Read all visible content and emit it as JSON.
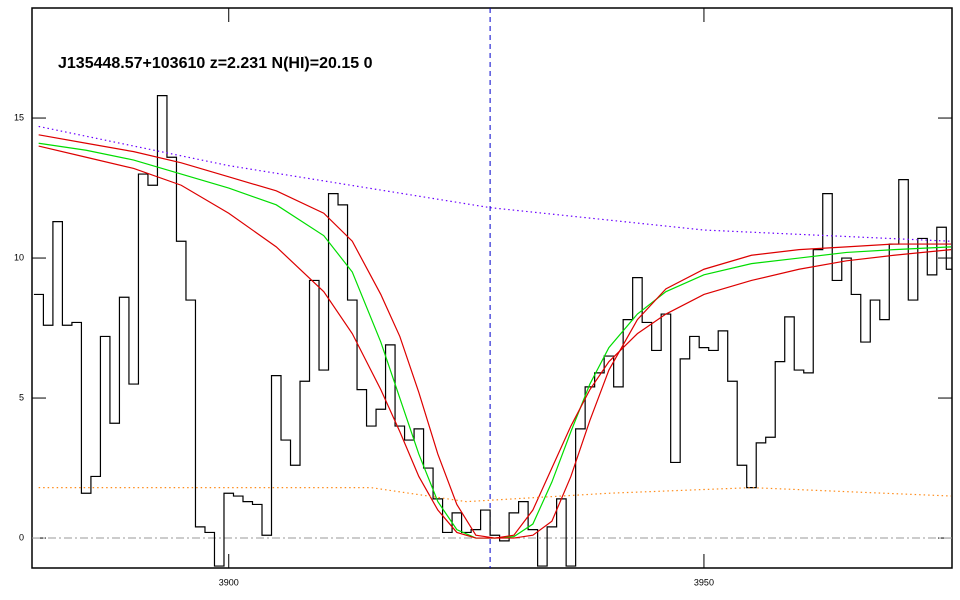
{
  "chart_data": {
    "type": "line",
    "title": "J135448.57+103610 z=2.231 N(HI)=20.15 0",
    "xlim": [
      3879.3,
      3976.1
    ],
    "ylim": [
      -1.07,
      18.93
    ],
    "xticks": [
      3900,
      3950
    ],
    "yticks": [
      0,
      5,
      10,
      15
    ],
    "vline": 3927.5,
    "zero_line": 0,
    "series": [
      {
        "style": "steps",
        "color": "#000000",
        "x": [
          3880,
          3881,
          3882,
          3883,
          3884,
          3885,
          3886,
          3887,
          3888,
          3889,
          3890,
          3891,
          3892,
          3893,
          3894,
          3895,
          3896,
          3897,
          3898,
          3899,
          3900,
          3901,
          3902,
          3903,
          3904,
          3905,
          3906,
          3907,
          3908,
          3909,
          3910,
          3911,
          3912,
          3913,
          3914,
          3915,
          3916,
          3917,
          3918,
          3919,
          3920,
          3921,
          3922,
          3923,
          3924,
          3925,
          3926,
          3927,
          3928,
          3929,
          3930,
          3931,
          3932,
          3933,
          3934,
          3935,
          3936,
          3937,
          3938,
          3939,
          3940,
          3941,
          3942,
          3943,
          3944,
          3945,
          3946,
          3947,
          3948,
          3949,
          3950,
          3951,
          3952,
          3953,
          3954,
          3955,
          3956,
          3957,
          3958,
          3959,
          3960,
          3961,
          3962,
          3963,
          3964,
          3965,
          3966,
          3967,
          3968,
          3969,
          3970,
          3971,
          3972,
          3973,
          3974,
          3975,
          3976
        ],
        "values": [
          8.7,
          7.6,
          11.3,
          7.6,
          7.7,
          1.6,
          2.2,
          7.2,
          4.1,
          8.6,
          5.5,
          13,
          12.6,
          15.8,
          13.6,
          10.6,
          8.5,
          0.4,
          0.2,
          -1.0,
          1.6,
          1.5,
          1.3,
          1.2,
          0.1,
          5.8,
          3.5,
          2.6,
          5.6,
          9.2,
          6.0,
          12.3,
          11.9,
          8.5,
          5.3,
          4.0,
          4.6,
          6.9,
          4.0,
          3.5,
          3.9,
          2.5,
          1.4,
          0.2,
          0.9,
          0.2,
          0.3,
          1.0,
          0.1,
          -0.1,
          0.9,
          1.3,
          0.3,
          -1.0,
          0.4,
          1.4,
          -1.0,
          3.9,
          5.4,
          5.9,
          6.5,
          5.4,
          7.8,
          9.3,
          7.7,
          6.7,
          8.0,
          2.7,
          6.4,
          7.2,
          6.8,
          6.7,
          7.4,
          5.6,
          2.6,
          1.8,
          3.4,
          3.6,
          6.3,
          7.9,
          6.0,
          5.9,
          10.3,
          12.3,
          9.2,
          10.0,
          8.7,
          7.0,
          8.5,
          7.8,
          10.5,
          12.8,
          8.5,
          10.7,
          9.4,
          11.1,
          9.6
        ]
      },
      {
        "style": "solid",
        "color": "#00dd00",
        "x": [
          3880,
          3885,
          3890,
          3895,
          3900,
          3905,
          3910,
          3913,
          3916,
          3918,
          3920,
          3922,
          3924,
          3926,
          3928,
          3930,
          3932,
          3934,
          3936,
          3938,
          3940,
          3943,
          3946,
          3950,
          3955,
          3960,
          3965,
          3970,
          3976
        ],
        "values": [
          14.1,
          13.85,
          13.5,
          13.0,
          12.5,
          11.9,
          10.8,
          9.5,
          7.0,
          5.0,
          3.0,
          1.3,
          0.3,
          0,
          0,
          0.05,
          0.5,
          2.0,
          3.8,
          5.5,
          6.8,
          8.0,
          8.8,
          9.4,
          9.8,
          10.0,
          10.2,
          10.3,
          10.4
        ]
      },
      {
        "style": "solid",
        "color": "#dd0000",
        "x": [
          3880,
          3885,
          3890,
          3895,
          3900,
          3905,
          3910,
          3913,
          3916,
          3918,
          3920,
          3922,
          3924,
          3926,
          3928,
          3930,
          3932,
          3934,
          3936,
          3938,
          3940,
          3943,
          3946,
          3950,
          3955,
          3960,
          3965,
          3970,
          3976
        ],
        "values": [
          14.4,
          14.1,
          13.8,
          13.4,
          12.9,
          12.4,
          11.6,
          10.6,
          8.7,
          7.2,
          5.2,
          3.0,
          1.2,
          0.1,
          0,
          0,
          0.1,
          0.6,
          2.2,
          4.2,
          6.0,
          7.8,
          8.9,
          9.6,
          10.1,
          10.3,
          10.4,
          10.5,
          10.5
        ]
      },
      {
        "style": "solid",
        "color": "#dd0000",
        "x": [
          3880,
          3885,
          3890,
          3895,
          3900,
          3905,
          3910,
          3913,
          3916,
          3918,
          3920,
          3922,
          3924,
          3926,
          3928,
          3930,
          3932,
          3934,
          3936,
          3938,
          3940,
          3943,
          3946,
          3950,
          3955,
          3960,
          3965,
          3970,
          3976
        ],
        "values": [
          14.0,
          13.6,
          13.2,
          12.6,
          11.6,
          10.4,
          8.8,
          7.3,
          5.3,
          3.8,
          2.2,
          1.0,
          0.2,
          0,
          0,
          0.1,
          1.0,
          2.5,
          4.0,
          5.3,
          6.3,
          7.3,
          8.0,
          8.7,
          9.2,
          9.6,
          9.9,
          10.1,
          10.3
        ]
      },
      {
        "style": "dotted",
        "color": "#6a00ff",
        "x": [
          3880,
          3900,
          3927.5,
          3950,
          3976
        ],
        "values": [
          14.7,
          13.3,
          11.8,
          11.0,
          10.6
        ]
      },
      {
        "style": "dotted",
        "color": "#ff8c1a",
        "x": [
          3880,
          3900,
          3915,
          3925,
          3940,
          3955,
          3976
        ],
        "values": [
          1.8,
          1.8,
          1.8,
          1.3,
          1.6,
          1.8,
          1.5
        ]
      }
    ]
  }
}
